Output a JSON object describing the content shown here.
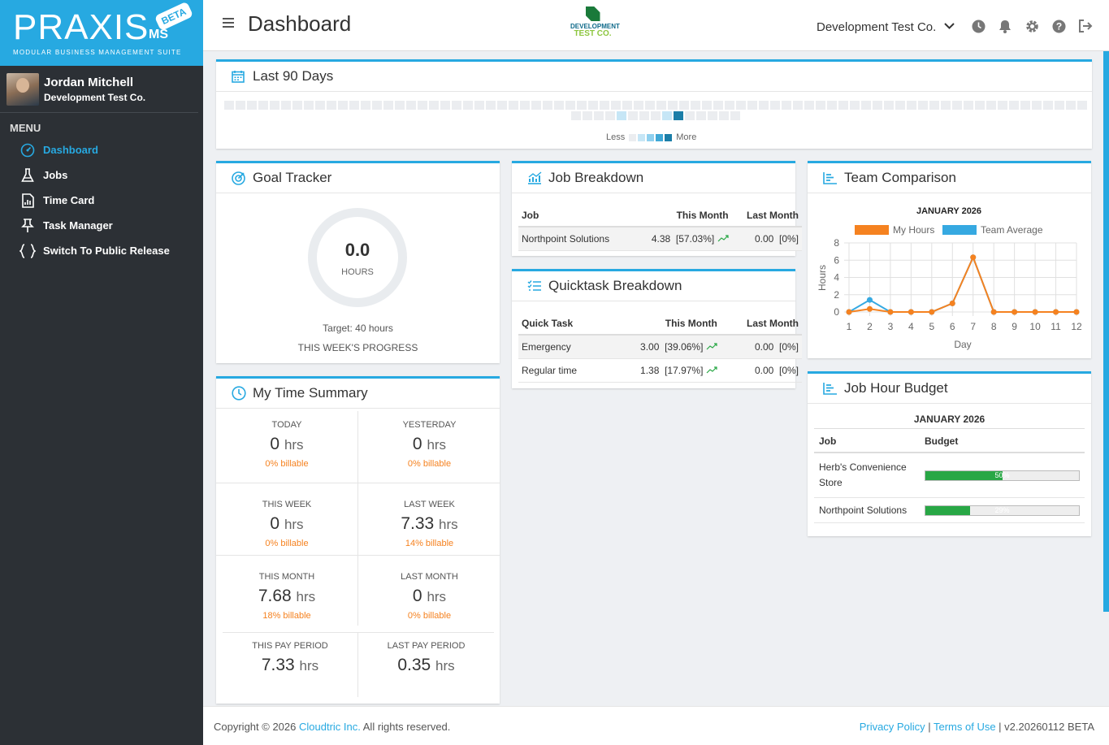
{
  "brand": {
    "name": "PRAXIS",
    "suffix": "MS",
    "badge": "BETA",
    "tagline": "MODULAR BUSINESS MANAGEMENT SUITE"
  },
  "user": {
    "name": "Jordan Mitchell",
    "company": "Development Test Co."
  },
  "menu": {
    "heading": "MENU",
    "items": [
      {
        "label": "Dashboard",
        "icon": "dashboard-icon",
        "active": true
      },
      {
        "label": "Jobs",
        "icon": "flask-icon"
      },
      {
        "label": "Time Card",
        "icon": "file-chart-icon"
      },
      {
        "label": "Task Manager",
        "icon": "pin-icon"
      },
      {
        "label": "Switch To Public Release",
        "icon": "braces-icon"
      }
    ]
  },
  "header": {
    "title": "Dashboard",
    "company_logo_line1": "DEVELOPMENT",
    "company_logo_line2": "TEST CO.",
    "company_selector": "Development Test Co.",
    "icons": [
      "clock-icon",
      "bell-icon",
      "gear-icon",
      "help-icon",
      "logout-icon"
    ]
  },
  "activity": {
    "title": "Last 90 Days",
    "less": "Less",
    "more": "More",
    "row1_count": 76,
    "row2_count": 15,
    "highlights": {
      "row2": [
        4,
        8,
        9
      ]
    },
    "colors": {
      "empty": "#ebedf0",
      "l1": "#c6e6f6",
      "l2": "#8fd0ef",
      "l3": "#3fa8d6",
      "l4": "#1b7ea8"
    }
  },
  "goal": {
    "title": "Goal Tracker",
    "value": "0.0",
    "unit": "HOURS",
    "target": "Target: 40 hours",
    "caption": "THIS WEEK'S PROGRESS",
    "progress": 0
  },
  "job_breakdown": {
    "title": "Job Breakdown",
    "headers": [
      "Job",
      "This Month",
      "Last Month"
    ],
    "rows": [
      {
        "job": "Northpoint Solutions",
        "this_month": "4.38",
        "this_pct": "[57.03%]",
        "last_month": "0.00",
        "last_pct": "[0%]"
      }
    ]
  },
  "quicktask": {
    "title": "Quicktask Breakdown",
    "headers": [
      "Quick Task",
      "This Month",
      "Last Month"
    ],
    "rows": [
      {
        "job": "Emergency",
        "this_month": "3.00",
        "this_pct": "[39.06%]",
        "last_month": "0.00",
        "last_pct": "[0%]"
      },
      {
        "job": "Regular time",
        "this_month": "1.38",
        "this_pct": "[17.97%]",
        "last_month": "0.00",
        "last_pct": "[0%]"
      }
    ]
  },
  "time_summary": {
    "title": "My Time Summary",
    "unit": "hrs",
    "rows": [
      [
        {
          "label": "TODAY",
          "value": "0",
          "billable": "0% billable"
        },
        {
          "label": "YESTERDAY",
          "value": "0",
          "billable": "0% billable"
        }
      ],
      [
        {
          "label": "THIS WEEK",
          "value": "0",
          "billable": "0% billable"
        },
        {
          "label": "LAST WEEK",
          "value": "7.33",
          "billable": "14% billable"
        }
      ],
      [
        {
          "label": "THIS MONTH",
          "value": "7.68",
          "billable": "18% billable"
        },
        {
          "label": "LAST MONTH",
          "value": "0",
          "billable": "0% billable"
        }
      ],
      [
        {
          "label": "THIS PAY PERIOD",
          "value": "7.33",
          "billable": ""
        },
        {
          "label": "LAST PAY PERIOD",
          "value": "0.35",
          "billable": ""
        }
      ]
    ]
  },
  "team_comparison": {
    "title": "Team Comparison"
  },
  "chart_data": {
    "type": "line",
    "title": "JANUARY 2026",
    "xlabel": "Day",
    "ylabel": "Hours",
    "x": [
      1,
      2,
      3,
      4,
      5,
      6,
      7,
      8,
      9,
      10,
      11,
      12
    ],
    "ylim": [
      0,
      8
    ],
    "yticks": [
      0,
      2,
      4,
      6,
      8
    ],
    "grid": true,
    "legend": "top",
    "series": [
      {
        "name": "My Hours",
        "color": "#f58220",
        "values": [
          0,
          0.35,
          0,
          0,
          0,
          1,
          6.33,
          0,
          0,
          0,
          0,
          0
        ]
      },
      {
        "name": "Team Average",
        "color": "#36a9e1",
        "values": [
          0,
          1.4,
          0,
          0,
          0,
          1,
          6.33,
          0,
          0,
          0,
          0,
          0
        ]
      }
    ]
  },
  "job_budget": {
    "title": "Job Hour Budget",
    "month": "JANUARY 2026",
    "headers": [
      "Job",
      "Budget"
    ],
    "rows": [
      {
        "job": "Herb's Convenience Store",
        "pct": 50,
        "label": "50%"
      },
      {
        "job": "Northpoint Solutions",
        "pct": 29,
        "label": "29%"
      }
    ]
  },
  "footer": {
    "copyright_pre": "Copyright © 2026 ",
    "company_link": "Cloudtric Inc.",
    "copyright_post": " All rights reserved.",
    "privacy": "Privacy Policy",
    "terms": "Terms of Use",
    "version": "v2.20260112 BETA"
  }
}
